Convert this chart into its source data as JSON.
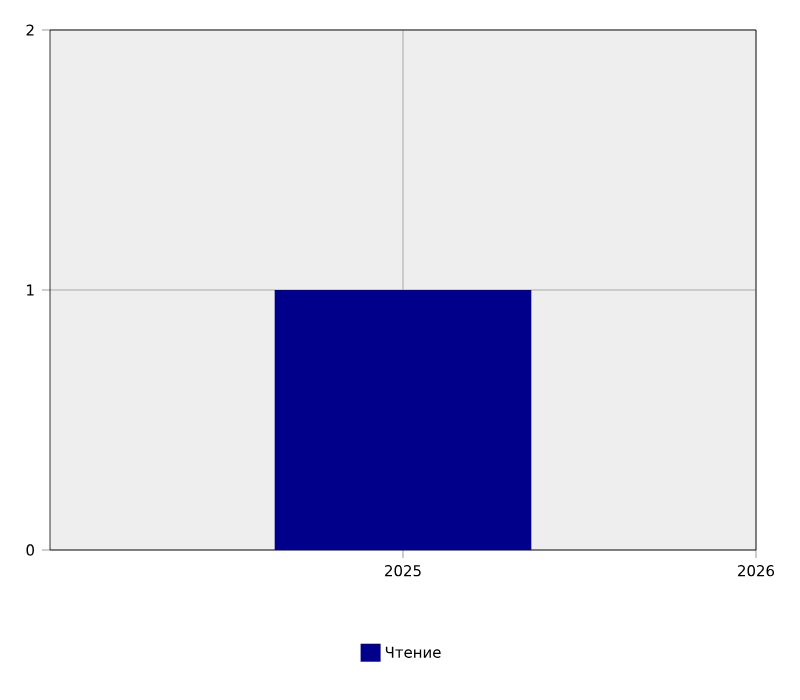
{
  "chart_data": {
    "type": "bar",
    "x": [
      2025
    ],
    "xlim": [
      2024,
      2026
    ],
    "xticks": [
      2025,
      2026
    ],
    "ylim": [
      0,
      2
    ],
    "yticks": [
      0,
      1,
      2
    ],
    "grid": true,
    "legend": "bottom",
    "series": [
      {
        "name": "Чтение",
        "color": "#00008b",
        "values": [
          1
        ]
      }
    ]
  }
}
